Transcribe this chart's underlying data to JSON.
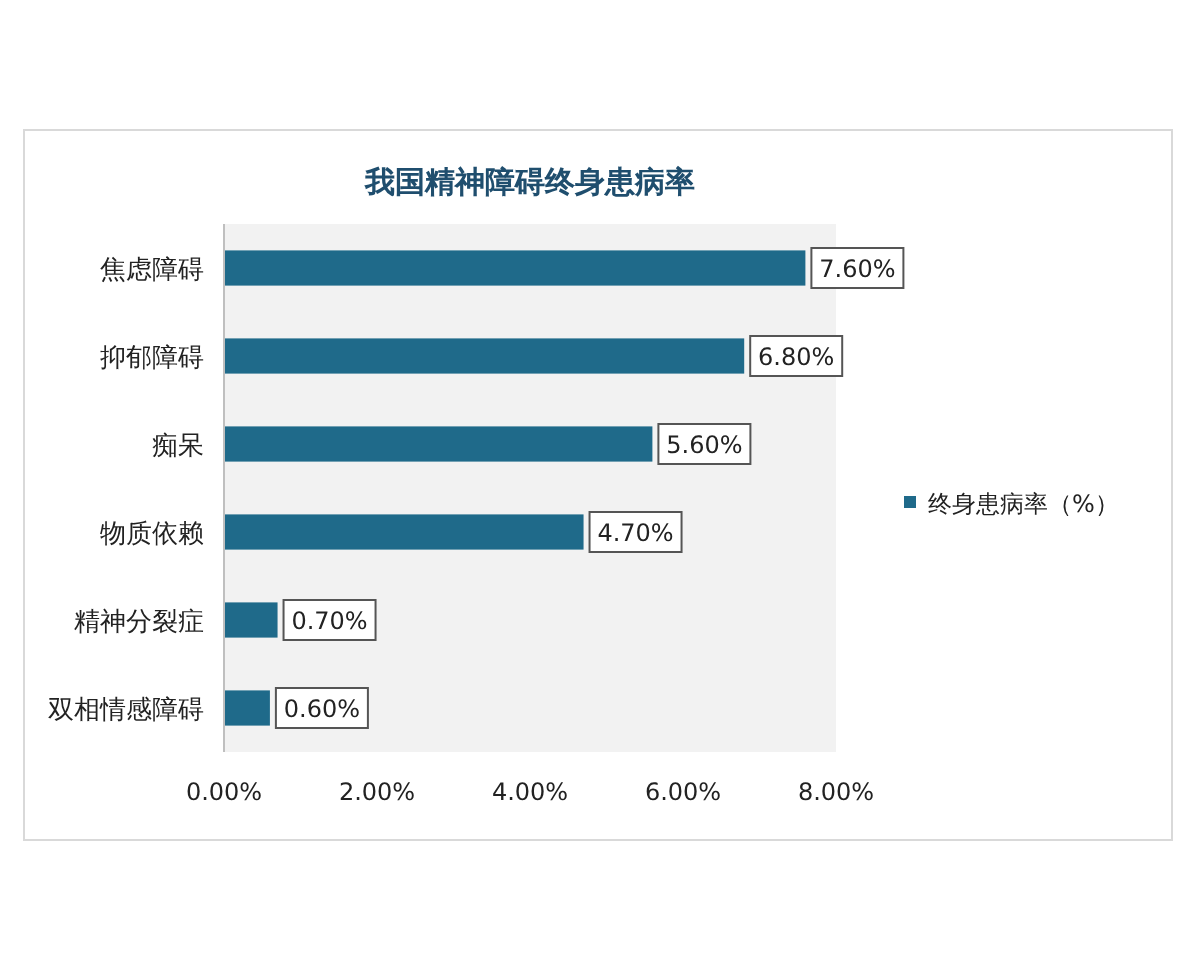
{
  "chart_data": {
    "type": "bar",
    "orientation": "horizontal",
    "title": "我国精神障碍终身患病率",
    "categories": [
      "焦虑障碍",
      "抑郁障碍",
      "痴呆",
      "物质依赖",
      "精神分裂症",
      "双相情感障碍"
    ],
    "series": [
      {
        "name": "终身患病率（%）",
        "color": "#1f6a8a",
        "values": [
          7.6,
          6.8,
          5.6,
          4.7,
          0.7,
          0.6
        ],
        "value_labels": [
          "7.60%",
          "6.80%",
          "5.60%",
          "4.70%",
          "0.70%",
          "0.60%"
        ]
      }
    ],
    "xlim": [
      0,
      8
    ],
    "xticks": [
      {
        "value": 0,
        "label": "0.00%"
      },
      {
        "value": 2,
        "label": "2.00%"
      },
      {
        "value": 4,
        "label": "4.00%"
      },
      {
        "value": 6,
        "label": "6.00%"
      },
      {
        "value": 8,
        "label": "8.00%"
      }
    ],
    "legend": "right"
  }
}
